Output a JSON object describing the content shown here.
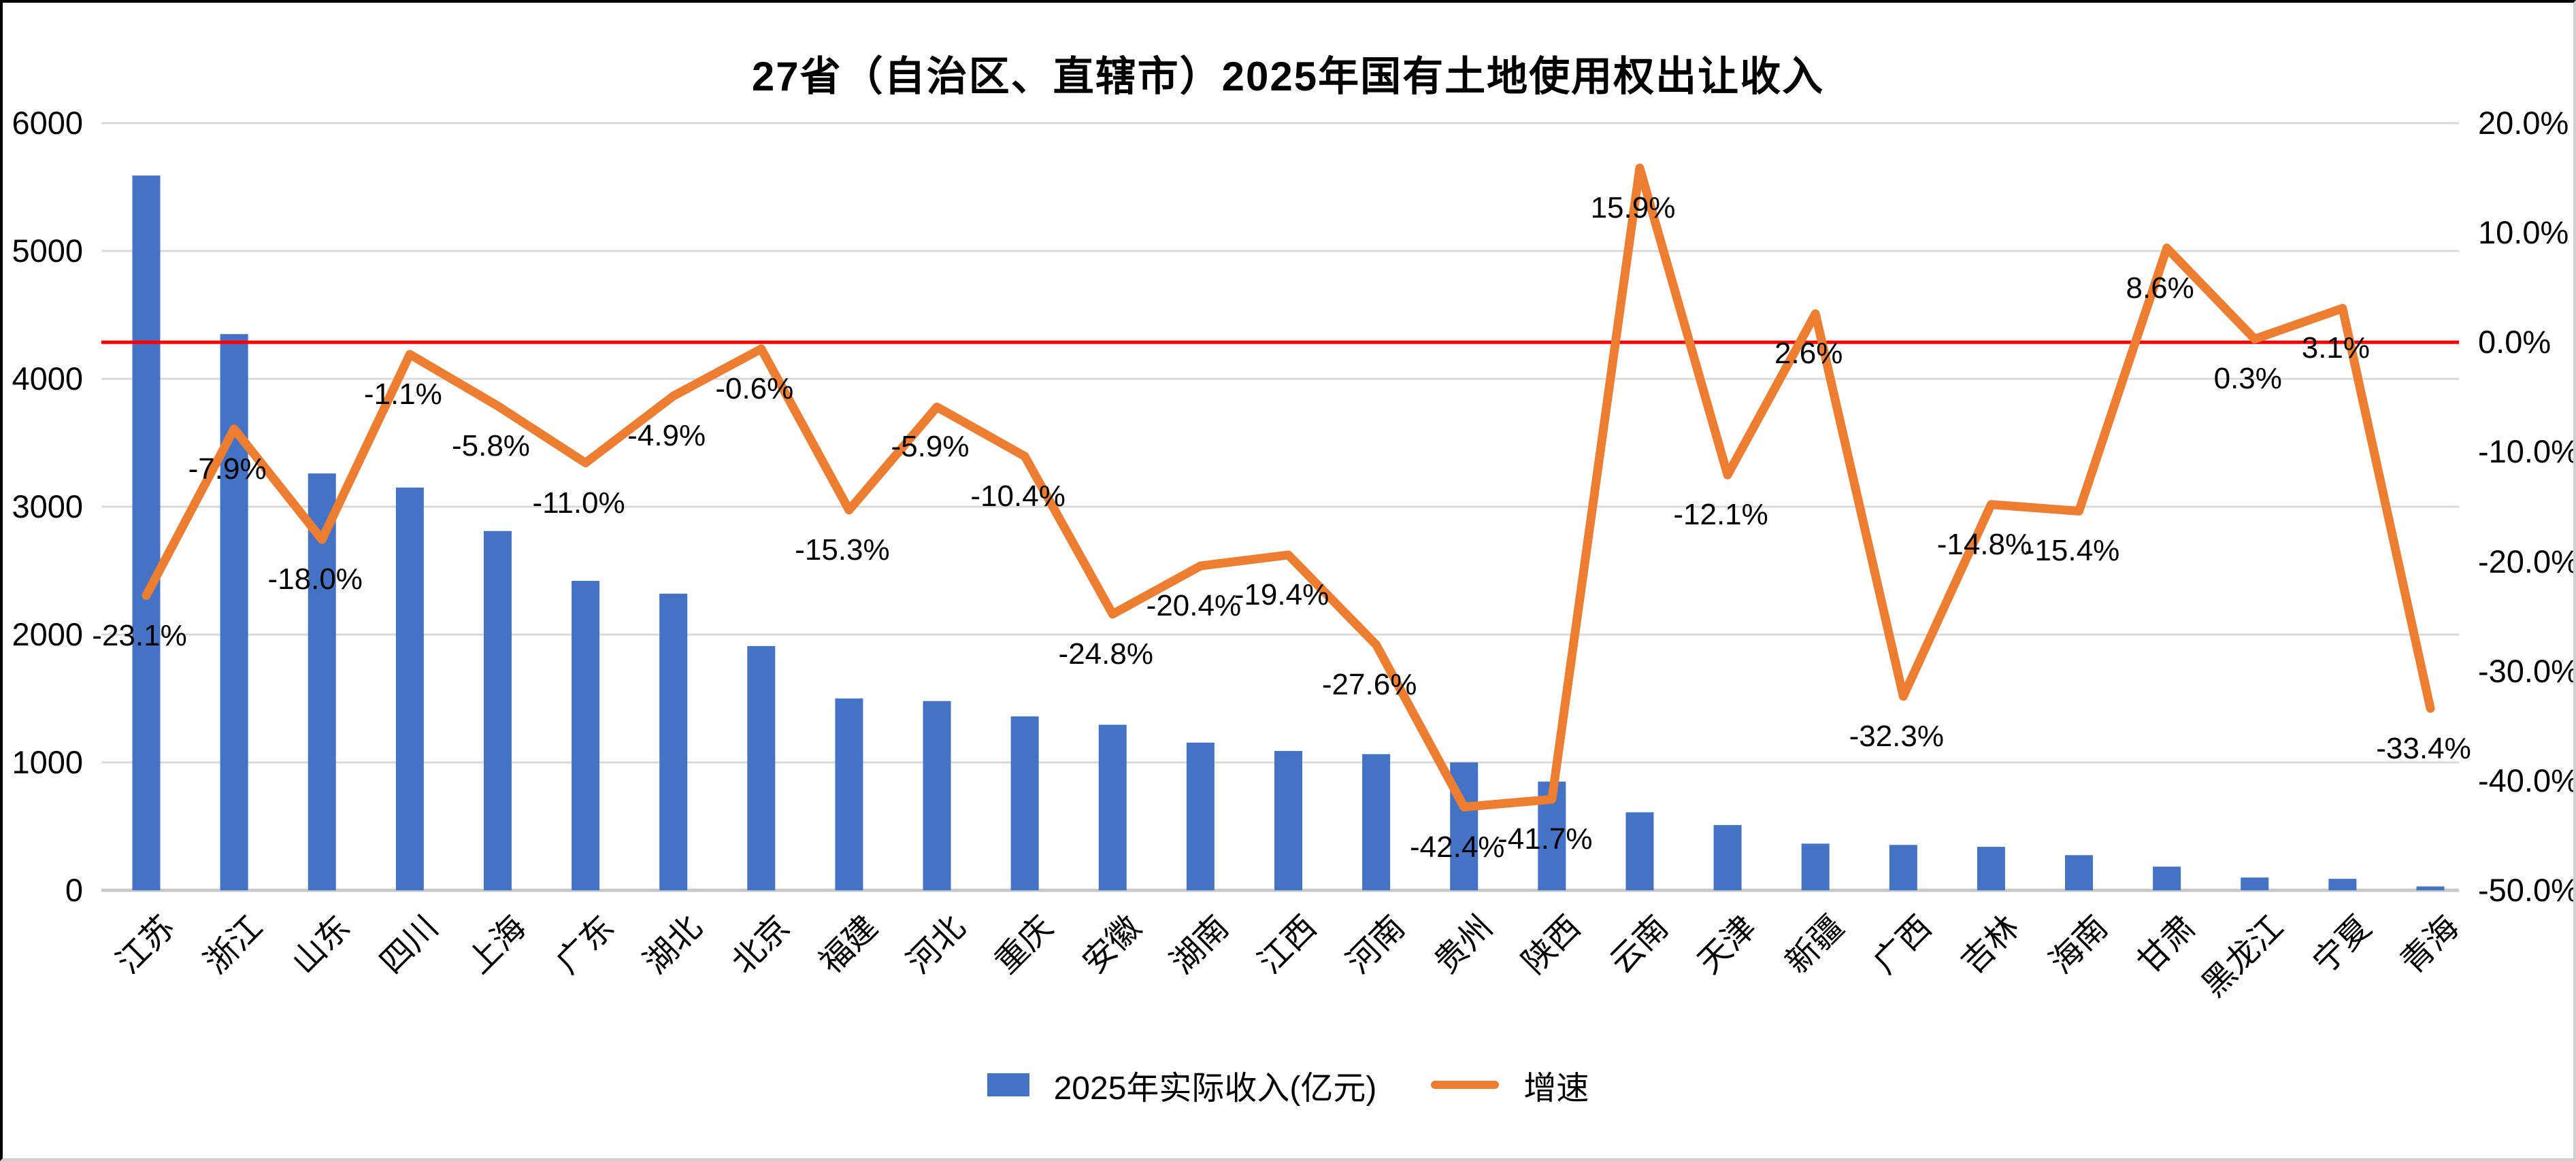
{
  "title": "27省（自治区、直辖市）2025年国有土地使用权出让收入",
  "legend": {
    "bar_label": "2025年实际收入(亿元)",
    "line_label": "增速"
  },
  "axes": {
    "left_ticks": [
      "6000",
      "5000",
      "4000",
      "3000",
      "2000",
      "1000",
      "0"
    ],
    "right_ticks": [
      "20.0%",
      "10.0%",
      "0.0%",
      "-10.0%",
      "-20.0%",
      "-30.0%",
      "-40.0%",
      "-50.0%"
    ]
  },
  "colors": {
    "bar": "#4472C4",
    "line": "#ED7D31",
    "baseline": "#FF0000",
    "grid": "#D9D9D9",
    "axis_line": "#C9C9C9",
    "text": "#000000"
  },
  "chart_data": {
    "type": "bar+line",
    "categories": [
      "江苏",
      "浙江",
      "山东",
      "四川",
      "上海",
      "广东",
      "湖北",
      "北京",
      "福建",
      "河北",
      "重庆",
      "安徽",
      "湖南",
      "江西",
      "河南",
      "贵州",
      "陕西",
      "云南",
      "天津",
      "新疆",
      "广西",
      "吉林",
      "海南",
      "甘肃",
      "黑龙江",
      "宁夏",
      "青海"
    ],
    "series": [
      {
        "name": "2025年实际收入(亿元)",
        "type": "bar",
        "axis": "left",
        "values": [
          5590,
          4350,
          3260,
          3150,
          2810,
          2420,
          2320,
          1910,
          1500,
          1480,
          1360,
          1295,
          1155,
          1090,
          1065,
          1000,
          850,
          610,
          510,
          365,
          355,
          340,
          275,
          185,
          100,
          90,
          30
        ]
      },
      {
        "name": "增速",
        "type": "line",
        "axis": "right",
        "values": [
          -23.1,
          -7.9,
          -18.0,
          -1.1,
          -5.8,
          -11.0,
          -4.9,
          -0.6,
          -15.3,
          -5.9,
          -10.4,
          -24.8,
          -20.4,
          -19.4,
          -27.6,
          -42.4,
          -41.7,
          15.9,
          -12.1,
          2.6,
          -32.3,
          -14.8,
          -15.4,
          8.6,
          0.3,
          3.1,
          -33.4
        ]
      }
    ],
    "left_ylim": [
      0,
      6000
    ],
    "right_ylim": [
      -50,
      20
    ],
    "baseline_right_value": 0,
    "grid": true,
    "legend_position": "bottom",
    "data_label_format": "0.0%"
  }
}
